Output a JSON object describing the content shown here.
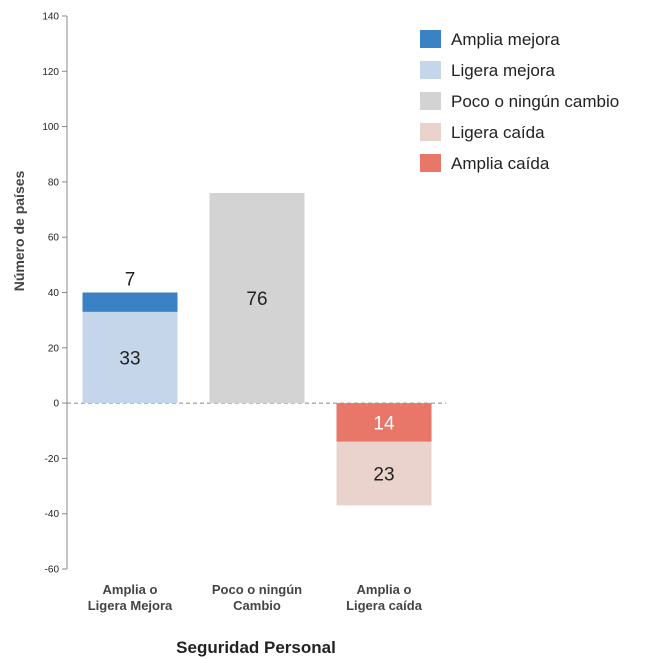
{
  "chart_data": {
    "type": "bar",
    "stacked": true,
    "xlabel": "Seguridad Personal",
    "ylabel": "Número de países",
    "ylim": [
      -60,
      140
    ],
    "yticks": [
      140,
      120,
      100,
      80,
      60,
      40,
      20,
      0,
      -20,
      -40,
      -60
    ],
    "categories": [
      [
        "Amplia o",
        "Ligera Mejora"
      ],
      [
        "Poco o ningún",
        "Cambio"
      ],
      [
        "Amplia o",
        "Ligera caída"
      ]
    ],
    "series": [
      {
        "name": "Amplia mejora",
        "color": "#3b82c4",
        "values": [
          7,
          0,
          0
        ]
      },
      {
        "name": "Ligera mejora",
        "color": "#c5d6ea",
        "values": [
          33,
          0,
          0
        ]
      },
      {
        "name": "Poco o ningún cambio",
        "color": "#d3d3d3",
        "values": [
          0,
          76,
          0
        ]
      },
      {
        "name": "Ligera caída",
        "color": "#ead3cd",
        "values": [
          0,
          0,
          -23
        ]
      },
      {
        "name": "Amplia caída",
        "color": "#e8776a",
        "values": [
          0,
          0,
          -14
        ]
      }
    ],
    "legend_position": "top-right",
    "grid": false
  }
}
